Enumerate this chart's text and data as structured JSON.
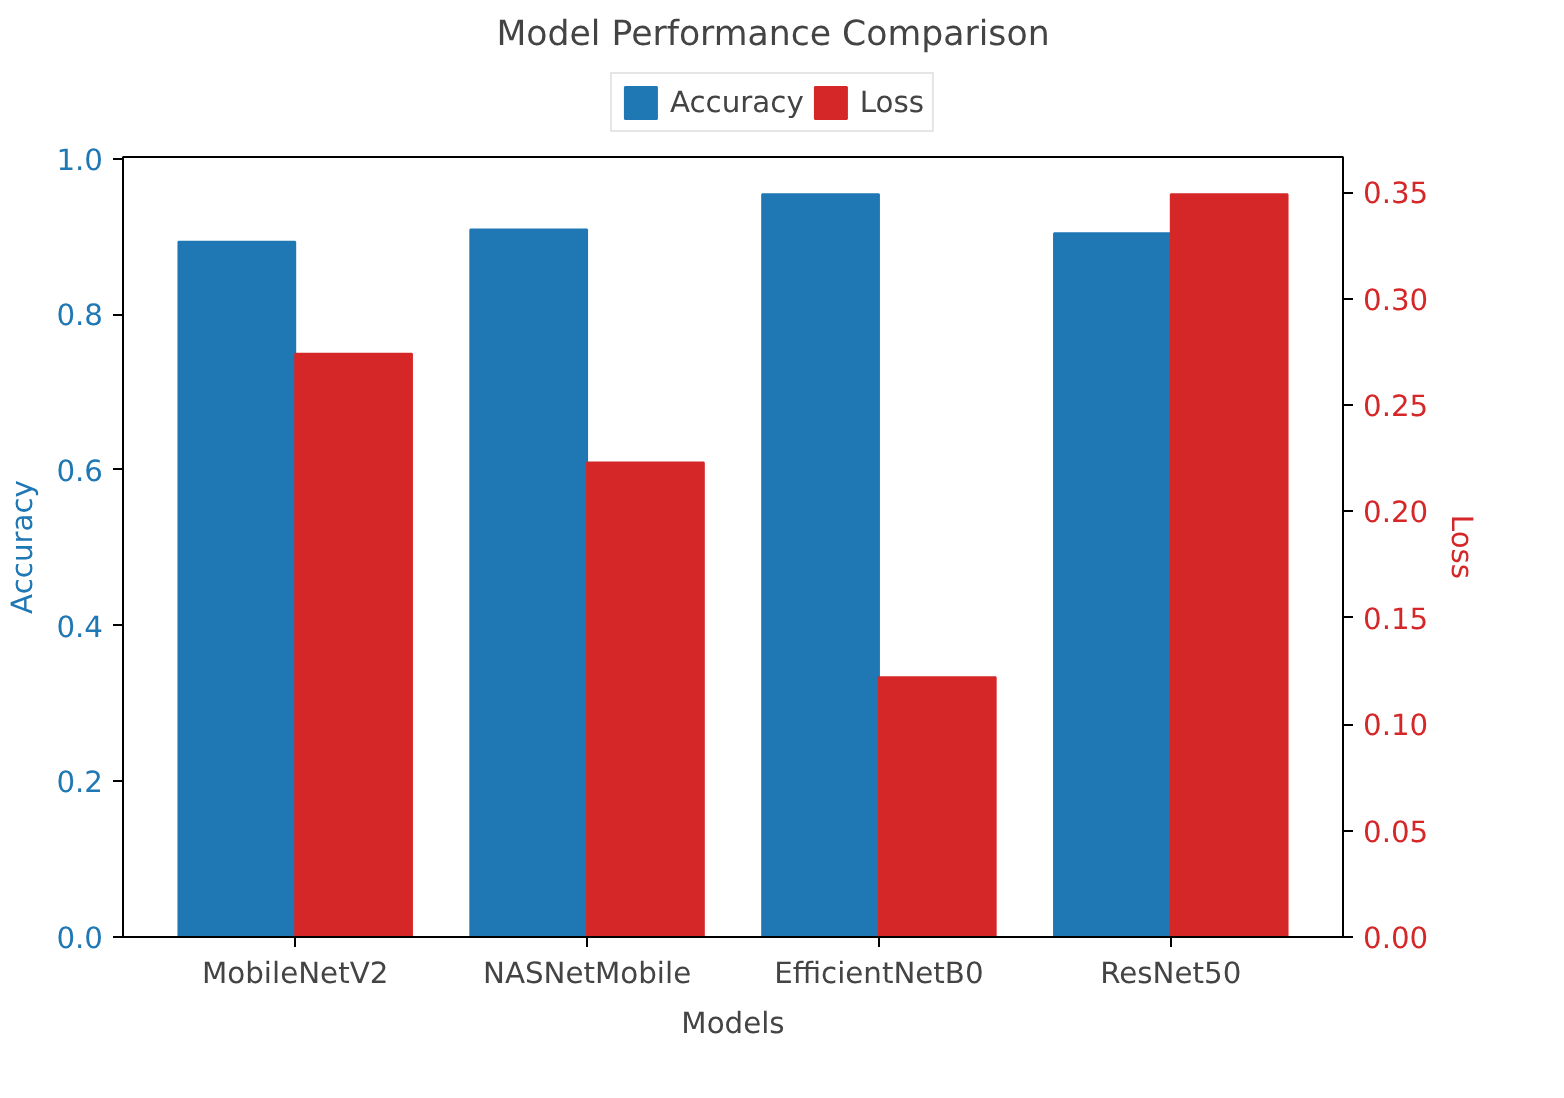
{
  "chart_data": {
    "type": "bar",
    "title": "Model Performance Comparison",
    "xlabel": "Models",
    "ylabel": "Accuracy",
    "y2label": "Loss",
    "categories": [
      "MobileNetV2",
      "NASNetMobile",
      "EfficientNetB0",
      "ResNet50"
    ],
    "series": [
      {
        "name": "Accuracy",
        "color": "#1f77b4",
        "values": [
          0.893,
          0.909,
          0.954,
          0.904
        ]
      },
      {
        "name": "Loss",
        "color": "#d62728",
        "axis": "y2",
        "values": [
          0.274,
          0.223,
          0.122,
          0.349
        ]
      }
    ],
    "ylim": [
      0,
      1.002
    ],
    "yticks": [
      {
        "value": 0,
        "label": "0.0"
      },
      0.2,
      0.4,
      0.6,
      0.8,
      {
        "value": 1,
        "label": "1.0"
      }
    ],
    "y2lim": [
      0,
      0.3665
    ],
    "y2ticks": [
      {
        "value": 0,
        "label": "0.00"
      },
      0.05,
      {
        "value": 0.1,
        "label": "0.10"
      },
      0.15,
      {
        "value": 0.2,
        "label": "0.20"
      },
      0.25,
      {
        "value": 0.3,
        "label": "0.30"
      },
      0.35
    ],
    "grid": false,
    "legend": "top"
  }
}
